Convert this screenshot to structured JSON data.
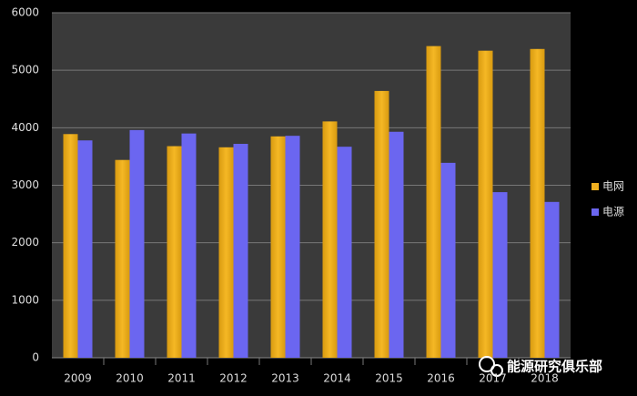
{
  "chart_data": {
    "type": "bar",
    "categories": [
      "2009",
      "2010",
      "2011",
      "2012",
      "2013",
      "2014",
      "2015",
      "2016",
      "2017",
      "2018"
    ],
    "series": [
      {
        "name": "电网",
        "color": "#f0b020",
        "values": [
          3890,
          3440,
          3680,
          3660,
          3850,
          4110,
          4640,
          5420,
          5340,
          5370
        ]
      },
      {
        "name": "电源",
        "color": "#6b66f0",
        "values": [
          3780,
          3960,
          3900,
          3720,
          3860,
          3670,
          3930,
          3390,
          2880,
          2710
        ]
      }
    ],
    "ylim": [
      0,
      6000
    ],
    "yticks": [
      0,
      1000,
      2000,
      3000,
      4000,
      5000,
      6000
    ],
    "grid": true,
    "legend": "right"
  },
  "watermark": "能源研究俱乐部"
}
